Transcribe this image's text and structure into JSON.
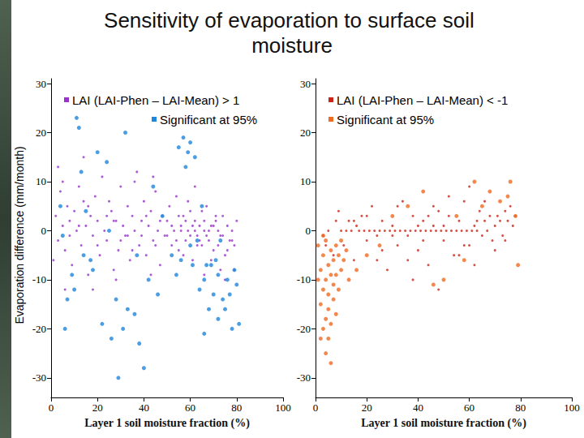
{
  "title": "Sensitivity of evaporation to surface soil moisture",
  "ylabel": "Evaporation difference (mm/month)",
  "chart_data": [
    {
      "type": "scatter",
      "xlabel": "Layer 1 soil moisture fraction (%)",
      "xlim": [
        0,
        100
      ],
      "xticks": [
        0,
        20,
        40,
        60,
        80,
        100
      ],
      "ylim": [
        -34,
        31
      ],
      "yticks": [
        -30,
        -20,
        -10,
        0,
        10,
        20,
        30
      ],
      "grid": false,
      "legend": "upper left",
      "series": [
        {
          "name": "LAI (LAI-Phen – LAI-Mean) > 1",
          "color": "#9933cc",
          "marker": "dot",
          "x": [
            2,
            3,
            4,
            5,
            6,
            7,
            8,
            9,
            10,
            11,
            12,
            13,
            14,
            15,
            16,
            17,
            18,
            19,
            20,
            21,
            22,
            23,
            24,
            25,
            26,
            27,
            28,
            29,
            30,
            31,
            32,
            33,
            34,
            35,
            36,
            37,
            38,
            39,
            40,
            41,
            42,
            43,
            44,
            45,
            46,
            47,
            48,
            49,
            50,
            51,
            52,
            53,
            54,
            55,
            56,
            57,
            58,
            59,
            60,
            61,
            62,
            63,
            64,
            65,
            66,
            67,
            68,
            69,
            70,
            71,
            72,
            73,
            74,
            75,
            76,
            77,
            78,
            79,
            80,
            50,
            52,
            54,
            56,
            58,
            60,
            62,
            64,
            66,
            68,
            70,
            72,
            74,
            76,
            78,
            55,
            57,
            59,
            61,
            63,
            65,
            67,
            69,
            71,
            73,
            45,
            47,
            43,
            41,
            39,
            35,
            33,
            30,
            27,
            24,
            20,
            16,
            12,
            8,
            5,
            3,
            14,
            18,
            28,
            36,
            44,
            62,
            66,
            75,
            79,
            1,
            6
          ],
          "values": [
            3,
            -2,
            8,
            1,
            -4,
            5,
            2,
            -7,
            4,
            0,
            9,
            -3,
            6,
            1,
            -9,
            3,
            -1,
            7,
            2,
            -5,
            11,
            0,
            -2,
            6,
            4,
            -8,
            2,
            -4,
            9,
            1,
            -1,
            5,
            -6,
            3,
            0,
            12,
            -3,
            2,
            6,
            -5,
            1,
            4,
            -2,
            8,
            0,
            -7,
            3,
            -1,
            2,
            5,
            -3,
            0,
            7,
            -4,
            1,
            3,
            -2,
            0,
            4,
            -6,
            2,
            -1,
            1,
            -3,
            0,
            5,
            -2,
            1,
            -4,
            2,
            0,
            -1,
            3,
            -5,
            1,
            -2,
            0,
            -3,
            2,
            -1,
            1,
            -2,
            0,
            2,
            -1,
            0,
            -2,
            2,
            0,
            1,
            -3,
            -1,
            -4,
            -2,
            3,
            -5,
            6,
            1,
            -3,
            4,
            -1,
            -6,
            3,
            -8,
            -3,
            2,
            -9,
            3,
            -1,
            -4,
            -1,
            -2,
            2,
            3,
            -3,
            5,
            1,
            -1,
            10,
            13,
            15,
            -12,
            -10,
            10,
            11,
            9,
            -9,
            -10,
            -8,
            -6,
            -12
          ]
        },
        {
          "name": "Significant at 95%",
          "color": "#1e86dc",
          "marker": "circle",
          "x": [
            5,
            6,
            7,
            9,
            10,
            11,
            12,
            13,
            14,
            15,
            17,
            18,
            20,
            22,
            24,
            26,
            28,
            29,
            31,
            32,
            33,
            36,
            38,
            40,
            42,
            44,
            46,
            48,
            52,
            54,
            55,
            57,
            58,
            59,
            60,
            61,
            62,
            63,
            64,
            65,
            66,
            67,
            68,
            69,
            70,
            71,
            72,
            73,
            74,
            75,
            76,
            77,
            78,
            79,
            80,
            81,
            66,
            72,
            60,
            56,
            25,
            4,
            37
          ],
          "values": [
            -1,
            -20,
            -14,
            -9,
            -12,
            23,
            21,
            12,
            -5,
            4,
            -6,
            -8,
            16,
            -19,
            14,
            -22,
            -14,
            -30,
            -20,
            20,
            -16,
            -17,
            -23,
            -28,
            -10,
            9,
            -13,
            3,
            -5,
            -9,
            17,
            19,
            13,
            16,
            18,
            -7,
            15,
            -2,
            -12,
            5,
            -10,
            -7,
            -16,
            -7,
            -13,
            -6,
            -9,
            -2,
            -14,
            -16,
            -10,
            -13,
            -20,
            -8,
            -11,
            -19,
            -21,
            -18,
            -3,
            -6,
            0,
            5,
            -5
          ]
        }
      ]
    },
    {
      "type": "scatter",
      "xlabel": "Layer 1 soil moisture fraction (%)",
      "xlim": [
        0,
        100
      ],
      "xticks": [
        0,
        20,
        40,
        60,
        80,
        100
      ],
      "ylim": [
        -34,
        31
      ],
      "yticks": [
        -30,
        -20,
        -10,
        0,
        10,
        20,
        30
      ],
      "grid": false,
      "legend": "upper left",
      "series": [
        {
          "name": "LAI (LAI-Phen – LAI-Mean) < -1",
          "color": "#cc2418",
          "marker": "dot",
          "x": [
            3,
            5,
            7,
            9,
            10,
            11,
            12,
            13,
            14,
            15,
            16,
            17,
            18,
            19,
            20,
            21,
            22,
            23,
            24,
            25,
            26,
            27,
            28,
            29,
            30,
            31,
            32,
            33,
            34,
            35,
            36,
            37,
            38,
            39,
            40,
            41,
            42,
            43,
            44,
            45,
            46,
            47,
            48,
            49,
            50,
            51,
            52,
            53,
            54,
            55,
            56,
            57,
            58,
            59,
            60,
            61,
            62,
            63,
            64,
            65,
            66,
            67,
            68,
            69,
            70,
            71,
            72,
            73,
            74,
            75,
            76,
            77,
            78,
            32,
            36,
            42,
            48,
            52,
            56,
            60,
            46,
            26,
            38,
            44,
            58,
            62,
            66,
            20,
            24,
            15,
            8,
            4,
            30,
            40,
            50,
            63,
            70,
            74
          ],
          "values": [
            -1,
            0,
            -5,
            4,
            0,
            -3,
            0,
            2,
            0,
            -6,
            1,
            0,
            3,
            0,
            -2,
            0,
            5,
            0,
            -1,
            0,
            2,
            0,
            -8,
            0,
            1,
            0,
            -3,
            0,
            6,
            0,
            -1,
            0,
            3,
            0,
            -4,
            0,
            2,
            0,
            -7,
            0,
            1,
            0,
            4,
            0,
            -2,
            0,
            3,
            0,
            -5,
            0,
            2,
            0,
            6,
            0,
            -3,
            0,
            1,
            0,
            4,
            -1,
            2,
            0,
            3,
            -2,
            1,
            3,
            2,
            -1,
            4,
            2,
            5,
            1,
            3,
            5,
            -6,
            -2,
            -12,
            7,
            -5,
            9,
            5,
            -4,
            -10,
            3,
            -3,
            -7,
            6,
            3,
            -6,
            2,
            2,
            -3,
            -1,
            1,
            1,
            2,
            -4,
            -2
          ]
        },
        {
          "name": "Significant at 95%",
          "color": "#f06a22",
          "marker": "circle",
          "x": [
            1,
            2,
            2,
            3,
            3,
            3,
            4,
            4,
            4,
            4,
            5,
            5,
            5,
            5,
            6,
            6,
            6,
            6,
            7,
            7,
            7,
            8,
            8,
            8,
            9,
            9,
            10,
            10,
            11,
            12,
            3,
            2,
            1,
            13,
            16,
            20,
            25,
            30,
            36,
            42,
            46,
            50,
            55,
            58,
            62,
            65,
            68,
            72,
            75,
            76,
            78,
            79
          ],
          "values": [
            -3,
            -8,
            -15,
            -5,
            -20,
            -12,
            -2,
            -10,
            -18,
            -25,
            -7,
            -13,
            -16,
            -22,
            -4,
            -9,
            -19,
            -27,
            -11,
            -14,
            -6,
            -3,
            -17,
            -9,
            -12,
            -5,
            -8,
            -2,
            -6,
            -4,
            -1,
            -22,
            -10,
            -10,
            -8,
            -5,
            -3,
            3,
            5,
            8,
            -11,
            -10,
            3,
            -6,
            10,
            5,
            8,
            6,
            7,
            10,
            3,
            -7
          ]
        }
      ]
    }
  ]
}
